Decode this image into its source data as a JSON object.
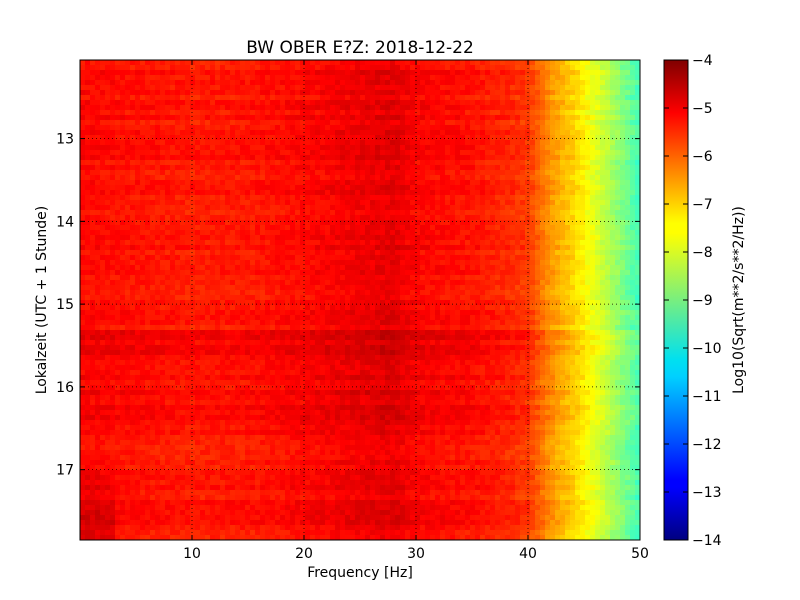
{
  "chart_data": {
    "type": "heatmap",
    "title": "BW OBER E?Z: 2018-12-22",
    "xlabel": "Frequency [Hz]",
    "ylabel": "Lokalzeit (UTC + 1 Stunde)",
    "xlim": [
      0,
      50
    ],
    "ylim": [
      17.85,
      12.05
    ],
    "y_inverted": true,
    "x_ticks": [
      10,
      20,
      30,
      40,
      50
    ],
    "x_tick_labels": [
      "10",
      "20",
      "30",
      "40",
      "50"
    ],
    "y_ticks": [
      13,
      14,
      15,
      16,
      17
    ],
    "y_tick_labels": [
      "13",
      "14",
      "15",
      "16",
      "17"
    ],
    "grid": true,
    "colormap": "jet",
    "colorbar": {
      "label": "Log10(Sqrt(m**2/s**2/Hz))",
      "range": [
        -14,
        -4
      ],
      "ticks": [
        -4,
        -5,
        -6,
        -7,
        -8,
        -9,
        -10,
        -11,
        -12,
        -13,
        -14
      ],
      "tick_labels": [
        "−4",
        "−5",
        "−6",
        "−7",
        "−8",
        "−9",
        "−10",
        "−11",
        "−12",
        "−13",
        "−14"
      ]
    },
    "spectrum_profile": {
      "frequency_hz": [
        0,
        5,
        10,
        15,
        20,
        25,
        28,
        30,
        35,
        38,
        40,
        42,
        44,
        46,
        48,
        50
      ],
      "log10_amplitude": [
        -5.3,
        -5.4,
        -5.5,
        -5.45,
        -5.3,
        -5.1,
        -5.0,
        -5.25,
        -5.4,
        -5.6,
        -5.8,
        -6.7,
        -7.3,
        -8.0,
        -8.8,
        -9.6
      ]
    },
    "time_bands": [
      {
        "from": 12.05,
        "to": 15.3,
        "offset": 0.0
      },
      {
        "from": 15.3,
        "to": 15.6,
        "offset": 0.25
      },
      {
        "from": 15.6,
        "to": 16.5,
        "offset": 0.1
      },
      {
        "from": 16.5,
        "to": 17.85,
        "offset": 0.0
      }
    ]
  }
}
